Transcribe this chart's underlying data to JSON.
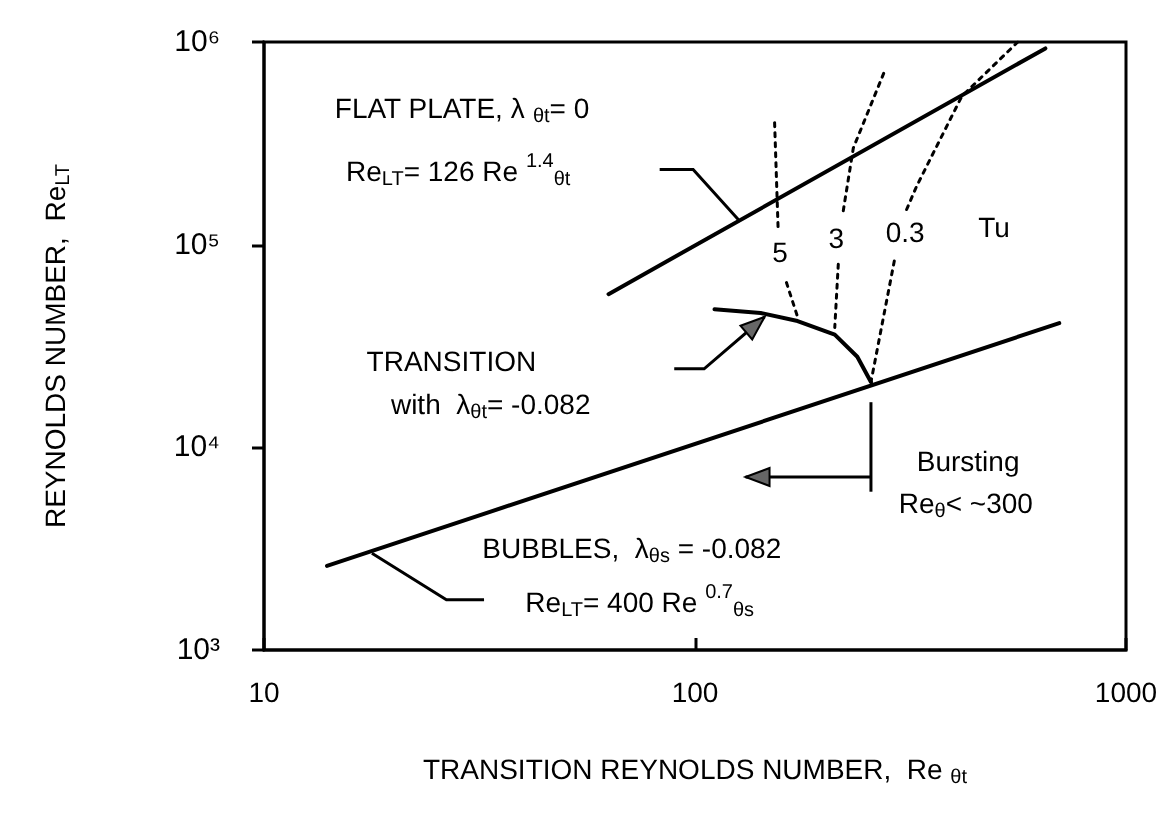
{
  "chart_data": {
    "type": "line",
    "xlabel": "TRANSITION REYNOLDS NUMBER,  Re $_{θt}$",
    "ylabel": "REYNOLDS NUMBER,  Re$_{LT}$",
    "xlim": [
      10,
      1000
    ],
    "ylim": [
      1000,
      1000000
    ],
    "xticks": [
      10,
      100,
      1000
    ],
    "yticks": [
      {
        "value": 1000,
        "label": "10³"
      },
      {
        "value": 10000,
        "label": "10⁴"
      },
      {
        "value": 100000,
        "label": "10⁵"
      },
      {
        "value": 1000000,
        "label": "10⁶"
      }
    ],
    "log": "xy",
    "marker": "none",
    "line_style": "solid",
    "series": [
      {
        "color": "#000000",
        "x": [
          63,
          650
        ],
        "values": [
          57000,
          930000
        ]
      },
      {
        "color": "#000000",
        "x": [
          14,
          700
        ],
        "values": [
          2600,
          41000
        ]
      },
      {
        "color": "#000000",
        "x": [
          111,
          142,
          173,
          211,
          238,
          256
        ],
        "values": [
          48000,
          46000,
          42000,
          36000,
          28000,
          21000
        ]
      },
      {
        "color": "#000000",
        "line_style": "dotted",
        "x": [
          153,
          156,
          160,
          163,
          173
        ],
        "values": [
          400000,
          115000,
          null,
          65000,
          44000
        ]
      },
      {
        "color": "#000000",
        "line_style": "dotted",
        "x": [
          274,
          233,
          220,
          217,
          215,
          211
        ],
        "values": [
          700000,
          300000,
          140000,
          null,
          80000,
          39000
        ]
      },
      {
        "color": "#000000",
        "line_style": "dotted",
        "x": [
          561,
          416,
          327,
          308,
          300,
          290,
          256
        ],
        "values": [
          1000000,
          540000,
          195000,
          145000,
          null,
          83000,
          21000
        ]
      }
    ],
    "annotations": [
      "FLAT PLATE, λ $_{θt}$= 0",
      "Re$_{LT}$= 126 Re $^{1.4}$$_{θt}$",
      "TRANSITION",
      "with  λ$_{θt}$= -0.082",
      {
        "text": "BUBBLES,  λ$_{θs}$ = -0.082",
        "x": 17.8,
        "y": 3000
      },
      "Re$_{LT}$= 400 Re $^{0.7}$$_{θs}$",
      "Bursting",
      "Re$_{θ}$< ~300",
      "5",
      "3",
      "0.3",
      "Tu"
    ]
  }
}
